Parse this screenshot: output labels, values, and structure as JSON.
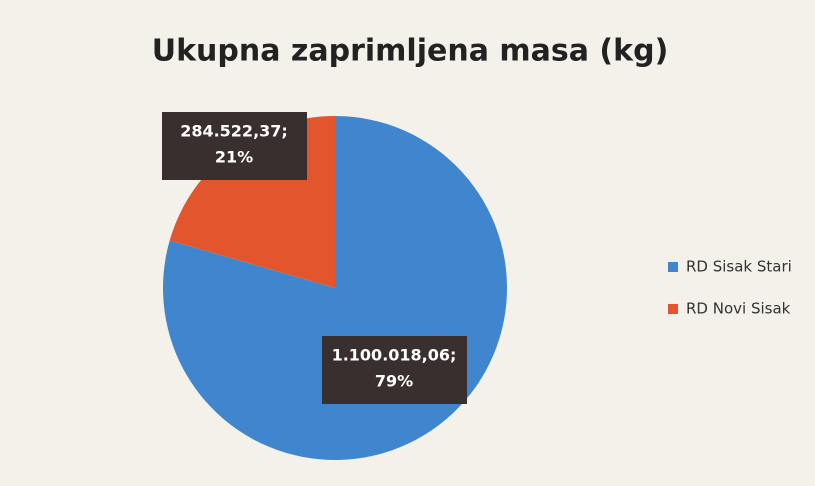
{
  "chart_data": {
    "type": "pie",
    "title": "Ukupna zaprimljena masa (kg)",
    "categories": [
      "RD Sisak Stari",
      "RD Novi Sisak"
    ],
    "values": [
      1100018.06,
      284522.37
    ],
    "value_labels": [
      "1.100.018,06;",
      "284.522,37;"
    ],
    "percents": [
      79,
      21
    ],
    "percent_labels": [
      "79%",
      "21%"
    ],
    "colors": [
      "#3f86cf",
      "#e3552c"
    ],
    "legend": "right"
  }
}
